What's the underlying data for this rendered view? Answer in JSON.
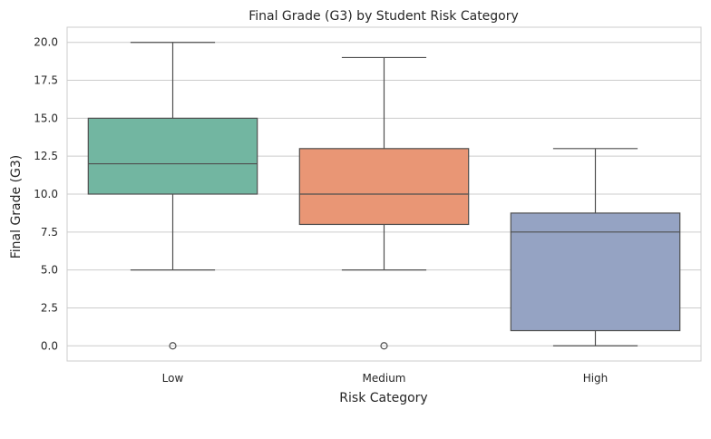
{
  "chart_data": {
    "type": "boxplot",
    "title": "Final Grade (G3) by Student Risk Category",
    "xlabel": "Risk Category",
    "ylabel": "Final Grade (G3)",
    "ylim": [
      -1.0,
      21.0
    ],
    "yticks": [
      "0.0",
      "2.5",
      "5.0",
      "7.5",
      "10.0",
      "12.5",
      "15.0",
      "17.5",
      "20.0"
    ],
    "grid": true,
    "categories": [
      "Low",
      "Medium",
      "High"
    ],
    "boxes": [
      {
        "category": "Low",
        "whisker_low": 5.0,
        "q1": 10.0,
        "median": 12.0,
        "q3": 15.0,
        "whisker_high": 20.0,
        "outliers": [
          0.0
        ],
        "color": "#72b6a1"
      },
      {
        "category": "Medium",
        "whisker_low": 5.0,
        "q1": 8.0,
        "median": 10.0,
        "q3": 13.0,
        "whisker_high": 19.0,
        "outliers": [
          0.0
        ],
        "color": "#e99675"
      },
      {
        "category": "High",
        "whisker_low": 0.0,
        "q1": 1.0,
        "median": 7.5,
        "q3": 8.75,
        "whisker_high": 13.0,
        "outliers": [],
        "color": "#95a3c3"
      }
    ]
  }
}
